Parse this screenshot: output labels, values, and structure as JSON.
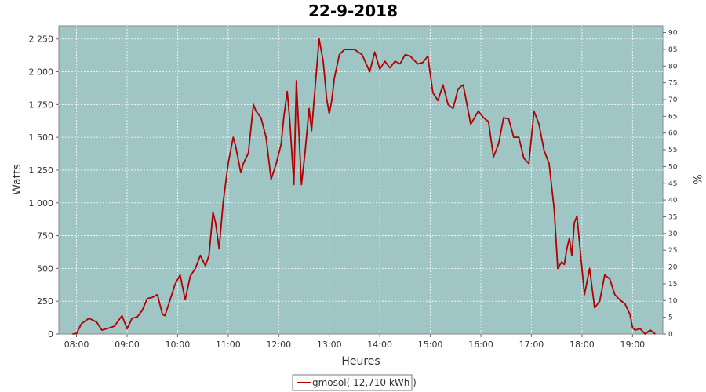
{
  "chart_data": {
    "type": "line",
    "title": "22-9-2018",
    "xlabel": "Heures",
    "ylabel": "Watts",
    "y2label": "%",
    "xlim": [
      7.65,
      19.6
    ],
    "ylim": [
      0,
      2350
    ],
    "y2lim": [
      0,
      92
    ],
    "x_ticks": [
      8,
      9,
      10,
      11,
      12,
      13,
      14,
      15,
      16,
      17,
      18,
      19
    ],
    "x_tick_labels": [
      "08:00",
      "09:00",
      "10:00",
      "11:00",
      "12:00",
      "13:00",
      "14:00",
      "15:00",
      "16:00",
      "17:00",
      "18:00",
      "19:00"
    ],
    "y_ticks": [
      0,
      250,
      500,
      750,
      1000,
      1250,
      1500,
      1750,
      2000,
      2250
    ],
    "y_tick_labels": [
      "0",
      "250",
      "500",
      "750",
      "1 000",
      "1 250",
      "1 500",
      "1 750",
      "2 000",
      "2 250"
    ],
    "y2_ticks": [
      0,
      5,
      10,
      15,
      20,
      25,
      30,
      35,
      40,
      45,
      50,
      55,
      60,
      65,
      70,
      75,
      80,
      85,
      90
    ],
    "y2_tick_labels": [
      "0",
      "5",
      "10",
      "15",
      "20",
      "25",
      "30",
      "35",
      "40",
      "45",
      "50",
      "55",
      "60",
      "65",
      "70",
      "75",
      "80",
      "85",
      "90"
    ],
    "grid": true,
    "background_color": "#9fc5c5",
    "series": [
      {
        "name": "gmosol( 12,710 kWh )",
        "color": "#b00000",
        "x": [
          7.92,
          8.0,
          8.1,
          8.25,
          8.4,
          8.5,
          8.6,
          8.75,
          8.9,
          9.0,
          9.1,
          9.2,
          9.3,
          9.4,
          9.5,
          9.6,
          9.7,
          9.75,
          9.85,
          9.95,
          10.05,
          10.15,
          10.25,
          10.35,
          10.45,
          10.55,
          10.62,
          10.7,
          10.75,
          10.82,
          10.9,
          11.0,
          11.1,
          11.15,
          11.25,
          11.3,
          11.4,
          11.5,
          11.55,
          11.65,
          11.75,
          11.85,
          11.95,
          12.05,
          12.1,
          12.17,
          12.22,
          12.3,
          12.35,
          12.45,
          12.52,
          12.6,
          12.65,
          12.72,
          12.8,
          12.88,
          12.95,
          13.0,
          13.05,
          13.1,
          13.2,
          13.3,
          13.5,
          13.65,
          13.8,
          13.9,
          14.0,
          14.1,
          14.2,
          14.3,
          14.4,
          14.5,
          14.6,
          14.75,
          14.85,
          14.95,
          15.05,
          15.15,
          15.25,
          15.35,
          15.45,
          15.55,
          15.65,
          15.8,
          15.95,
          16.05,
          16.15,
          16.25,
          16.35,
          16.45,
          16.55,
          16.65,
          16.75,
          16.85,
          16.95,
          17.05,
          17.15,
          17.25,
          17.35,
          17.45,
          17.52,
          17.6,
          17.65,
          17.7,
          17.75,
          17.8,
          17.85,
          17.9,
          17.95,
          18.05,
          18.15,
          18.25,
          18.35,
          18.45,
          18.55,
          18.65,
          18.75,
          18.85,
          18.95,
          19.0,
          19.05,
          19.15,
          19.25,
          19.35,
          19.45
        ],
        "values": [
          0,
          5,
          80,
          120,
          90,
          30,
          40,
          60,
          140,
          40,
          120,
          130,
          180,
          270,
          280,
          300,
          150,
          140,
          260,
          380,
          450,
          260,
          440,
          500,
          600,
          520,
          600,
          930,
          850,
          650,
          1000,
          1300,
          1500,
          1430,
          1230,
          1300,
          1380,
          1750,
          1700,
          1650,
          1500,
          1180,
          1300,
          1450,
          1650,
          1850,
          1620,
          1140,
          1930,
          1140,
          1380,
          1720,
          1550,
          1880,
          2250,
          2080,
          1790,
          1680,
          1780,
          1950,
          2130,
          2170,
          2170,
          2130,
          2000,
          2150,
          2020,
          2080,
          2030,
          2080,
          2060,
          2130,
          2120,
          2060,
          2070,
          2120,
          1840,
          1780,
          1900,
          1750,
          1720,
          1870,
          1900,
          1600,
          1700,
          1650,
          1620,
          1350,
          1450,
          1650,
          1640,
          1500,
          1500,
          1340,
          1300,
          1700,
          1600,
          1400,
          1300,
          950,
          500,
          550,
          530,
          650,
          730,
          600,
          850,
          900,
          700,
          300,
          500,
          200,
          250,
          450,
          420,
          300,
          260,
          230,
          150,
          50,
          30,
          40,
          0,
          30,
          0
        ]
      }
    ]
  },
  "legend": {
    "label": "gmosol( 12,710 kWh )"
  }
}
